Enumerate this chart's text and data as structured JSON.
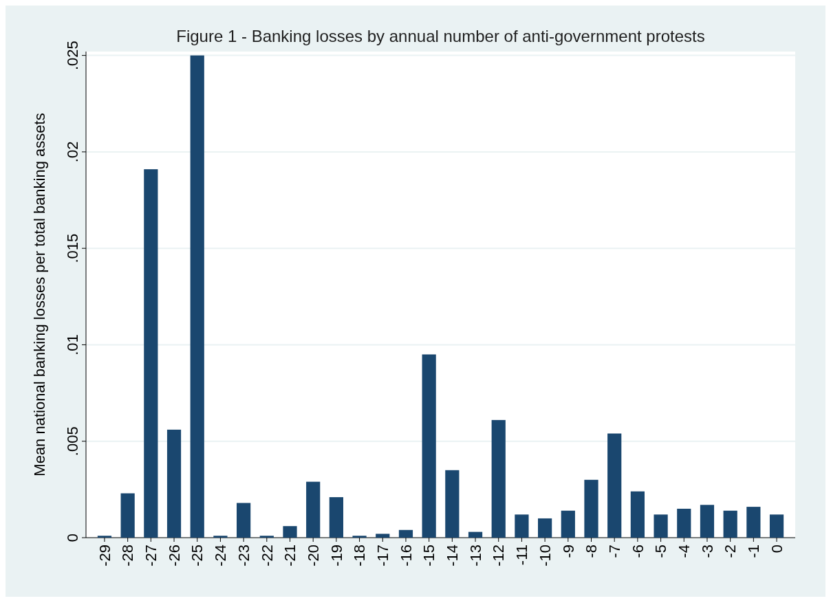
{
  "chart_data": {
    "type": "bar",
    "title": "Figure 1 - Banking losses by annual number of anti-government protests",
    "ylabel": "Mean national banking losses per total banking assets",
    "categories": [
      "-29",
      "-28",
      "-27",
      "-26",
      "-25",
      "-24",
      "-23",
      "-22",
      "-21",
      "-20",
      "-19",
      "-18",
      "-17",
      "-16",
      "-15",
      "-14",
      "-13",
      "-12",
      "-11",
      "-10",
      "-9",
      "-8",
      "-7",
      "-6",
      "-5",
      "-4",
      "-3",
      "-2",
      "-1",
      "0"
    ],
    "values": [
      0.0001,
      0.0023,
      0.0191,
      0.0056,
      0.025,
      0.0001,
      0.0018,
      0.0001,
      0.0006,
      0.0029,
      0.0021,
      0.0001,
      0.0002,
      0.0004,
      0.0095,
      0.0035,
      0.0003,
      0.0061,
      0.0012,
      0.001,
      0.0014,
      0.003,
      0.0054,
      0.0024,
      0.0012,
      0.0015,
      0.0017,
      0.0014,
      0.0016,
      0.0012
    ],
    "color": "#1a476f",
    "ylim": [
      0,
      0.0252
    ],
    "yticks": [
      {
        "value": 0,
        "label": "0"
      },
      {
        "value": 0.005,
        "label": ".005"
      },
      {
        "value": 0.01,
        "label": ".01"
      },
      {
        "value": 0.015,
        "label": ".015"
      },
      {
        "value": 0.02,
        "label": ".02"
      },
      {
        "value": 0.025,
        "label": ".025"
      }
    ],
    "grid": "y"
  }
}
